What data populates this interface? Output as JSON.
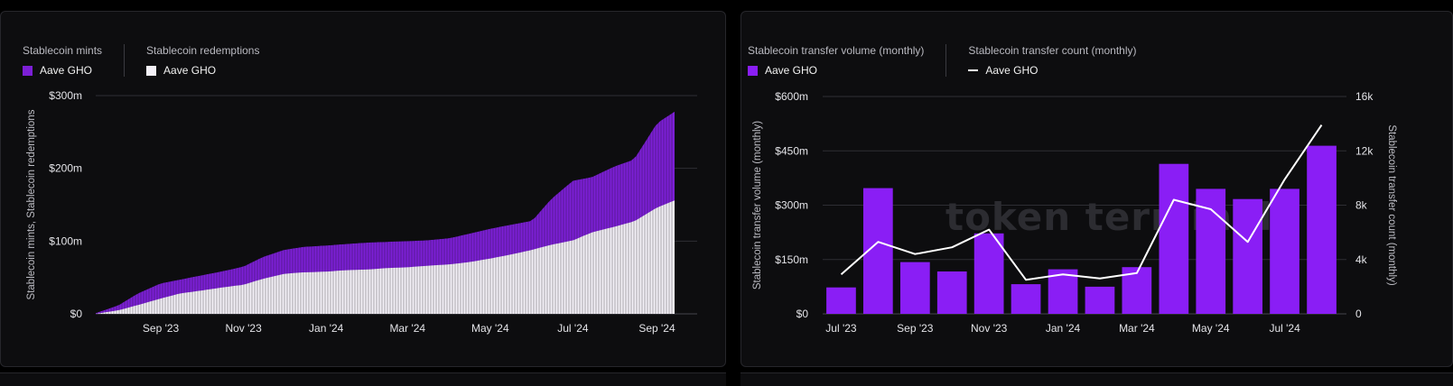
{
  "watermark": "token terminal_",
  "colors": {
    "mints": "#7c1fd6",
    "redemptions": "#f3f0f7",
    "volume": "#8a1ef5",
    "count": "#ffffff",
    "grid": "#2e2e34"
  },
  "left": {
    "legend": [
      {
        "title": "Stablecoin mints",
        "item": "Aave GHO"
      },
      {
        "title": "Stablecoin redemptions",
        "item": "Aave GHO"
      }
    ]
  },
  "right": {
    "legend": [
      {
        "title": "Stablecoin transfer volume (monthly)",
        "item": "Aave GHO"
      },
      {
        "title": "Stablecoin transfer count (monthly)",
        "item": "Aave GHO"
      }
    ]
  },
  "chart_data": [
    {
      "type": "area",
      "stacked": false,
      "ylabel": "Stablecoin mints, Stablecoin redemptions",
      "ylim": [
        0,
        300
      ],
      "yticks": [
        "$0",
        "$100m",
        "$200m",
        "$300m"
      ],
      "ytick_values": [
        0,
        100,
        200,
        300
      ],
      "xticks": [
        "Sep '23",
        "Nov '23",
        "Jan '24",
        "Mar '24",
        "May '24",
        "Jul '24",
        "Sep '24"
      ],
      "xlim": [
        "2023-07-15",
        "2024-09-14"
      ],
      "xtick_dates": [
        "2023-09-01",
        "2023-11-01",
        "2024-01-01",
        "2024-03-01",
        "2024-05-01",
        "2024-07-01",
        "2024-09-01"
      ],
      "series": [
        {
          "name": "Stablecoin mints",
          "dates": [
            "2023-07-15",
            "2023-08-01",
            "2023-08-15",
            "2023-09-01",
            "2023-09-15",
            "2023-10-01",
            "2023-10-15",
            "2023-11-01",
            "2023-11-15",
            "2023-12-01",
            "2023-12-15",
            "2024-01-01",
            "2024-01-15",
            "2024-02-01",
            "2024-02-15",
            "2024-03-01",
            "2024-03-15",
            "2024-04-01",
            "2024-04-15",
            "2024-05-01",
            "2024-05-15",
            "2024-06-01",
            "2024-06-15",
            "2024-07-01",
            "2024-07-15",
            "2024-08-01",
            "2024-08-15",
            "2024-09-01",
            "2024-09-14"
          ],
          "values": [
            1,
            12,
            28,
            42,
            47,
            53,
            58,
            65,
            78,
            88,
            92,
            94,
            96,
            98,
            99,
            100,
            101,
            104,
            110,
            117,
            122,
            128,
            158,
            183,
            188,
            203,
            212,
            262,
            278
          ]
        },
        {
          "name": "Stablecoin redemptions",
          "dates": [
            "2023-07-15",
            "2023-08-01",
            "2023-08-15",
            "2023-09-01",
            "2023-09-15",
            "2023-10-01",
            "2023-10-15",
            "2023-11-01",
            "2023-11-15",
            "2023-12-01",
            "2023-12-15",
            "2024-01-01",
            "2024-01-15",
            "2024-02-01",
            "2024-02-15",
            "2024-03-01",
            "2024-03-15",
            "2024-04-01",
            "2024-04-15",
            "2024-05-01",
            "2024-05-15",
            "2024-06-01",
            "2024-06-15",
            "2024-07-01",
            "2024-07-15",
            "2024-08-01",
            "2024-08-15",
            "2024-09-01",
            "2024-09-14"
          ],
          "values": [
            0,
            5,
            12,
            21,
            28,
            32,
            36,
            40,
            48,
            55,
            57,
            58,
            60,
            61,
            63,
            64,
            66,
            68,
            71,
            76,
            81,
            88,
            95,
            101,
            112,
            120,
            127,
            146,
            156
          ]
        }
      ]
    },
    {
      "type": "bar",
      "ylabel": "Stablecoin transfer volume (monthly)",
      "y2label": "Stablecoin transfer count (monthly)",
      "ylim": [
        0,
        600
      ],
      "yticks": [
        "$0",
        "$150m",
        "$300m",
        "$450m",
        "$600m"
      ],
      "ytick_values": [
        0,
        150,
        300,
        450,
        600
      ],
      "y2lim": [
        0,
        16000
      ],
      "y2ticks": [
        "0",
        "4k",
        "8k",
        "12k",
        "16k"
      ],
      "y2tick_values": [
        0,
        4000,
        8000,
        12000,
        16000
      ],
      "xticks": [
        "Jul '23",
        "Sep '23",
        "Nov '23",
        "Jan '24",
        "Mar '24",
        "May '24",
        "Jul '24"
      ],
      "xtick_index": [
        0,
        2,
        4,
        6,
        8,
        10,
        12
      ],
      "categories": [
        "2023-07",
        "2023-08",
        "2023-09",
        "2023-10",
        "2023-11",
        "2023-12",
        "2024-01",
        "2024-02",
        "2024-03",
        "2024-04",
        "2024-05",
        "2024-06",
        "2024-07",
        "2024-08"
      ],
      "series": [
        {
          "name": "Stablecoin transfer volume (monthly)",
          "kind": "bar",
          "values": [
            73,
            347,
            143,
            117,
            222,
            82,
            123,
            75,
            129,
            414,
            345,
            317,
            345,
            464
          ]
        },
        {
          "name": "Stablecoin transfer count (monthly)",
          "kind": "line",
          "axis": "right",
          "values": [
            2900,
            5300,
            4400,
            4900,
            6200,
            2500,
            2900,
            2600,
            3000,
            8400,
            7700,
            5300,
            9900,
            13900
          ]
        }
      ]
    }
  ]
}
